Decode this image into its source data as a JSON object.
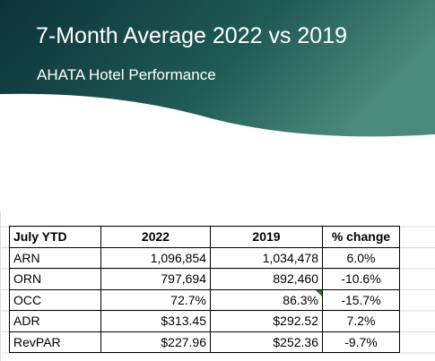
{
  "header": {
    "title": "7-Month Average 2022 vs 2019",
    "subtitle": "AHATA Hotel Performance"
  },
  "table": {
    "columns": [
      "July YTD",
      "2022",
      "2019",
      "% change"
    ],
    "rows": [
      [
        "ARN",
        "1,096,854",
        "1,034,478",
        "6.0%"
      ],
      [
        "ORN",
        "797,694",
        "892,460",
        "-10.6%"
      ],
      [
        "OCC",
        "72.7%",
        "86.3%",
        "-15.7%"
      ],
      [
        "ADR",
        "$313.45",
        "$292.52",
        "7.2%"
      ],
      [
        "RevPAR",
        "$227.96",
        "$252.36",
        "-9.7%"
      ]
    ]
  }
}
